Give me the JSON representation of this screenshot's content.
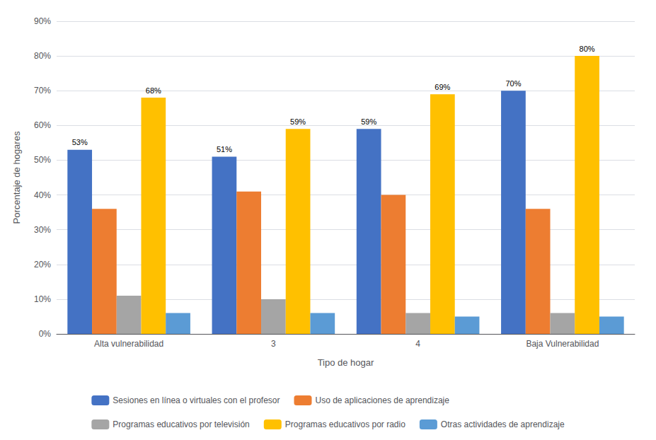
{
  "chart_data": {
    "type": "bar",
    "xlabel": "Tipo de hogar",
    "ylabel": "Porcentaje de hogares",
    "categories": [
      "Alta vulnerabilidad",
      "3",
      "4",
      "Baja Vulnerabilidad"
    ],
    "series": [
      {
        "name": "Sesiones en línea o virtuales con el profesor",
        "color": "#4472C4",
        "values": [
          53,
          51,
          59,
          70
        ],
        "value_labels": [
          "53%",
          "51%",
          "59%",
          "70%"
        ]
      },
      {
        "name": "Uso de aplicaciones de aprendizaje",
        "color": "#ED7D31",
        "values": [
          36,
          41,
          40,
          36
        ]
      },
      {
        "name": "Programas educativos por televisión",
        "color": "#A5A5A5",
        "values": [
          11,
          10,
          6,
          6
        ]
      },
      {
        "name": "Programas educativos por radio",
        "color": "#FFC000",
        "values": [
          68,
          59,
          69,
          80
        ],
        "value_labels": [
          "68%",
          "59%",
          "69%",
          "80%"
        ]
      },
      {
        "name": "Otras actividades de aprendizaje",
        "color": "#5B9BD5",
        "values": [
          6,
          6,
          5,
          5
        ]
      }
    ],
    "ylim": [
      0,
      90
    ],
    "yticks": [
      {
        "value": 0,
        "label": "0%"
      },
      {
        "value": 10,
        "label": "10%"
      },
      {
        "value": 20,
        "label": "20%"
      },
      {
        "value": 30,
        "label": "30%"
      },
      {
        "value": 40,
        "label": "40%"
      },
      {
        "value": 50,
        "label": "50%"
      },
      {
        "value": 60,
        "label": "60%"
      },
      {
        "value": 70,
        "label": "70%"
      },
      {
        "value": 80,
        "label": "80%"
      },
      {
        "value": 90,
        "label": "90%"
      }
    ],
    "grid": true,
    "legend": "bottom"
  }
}
